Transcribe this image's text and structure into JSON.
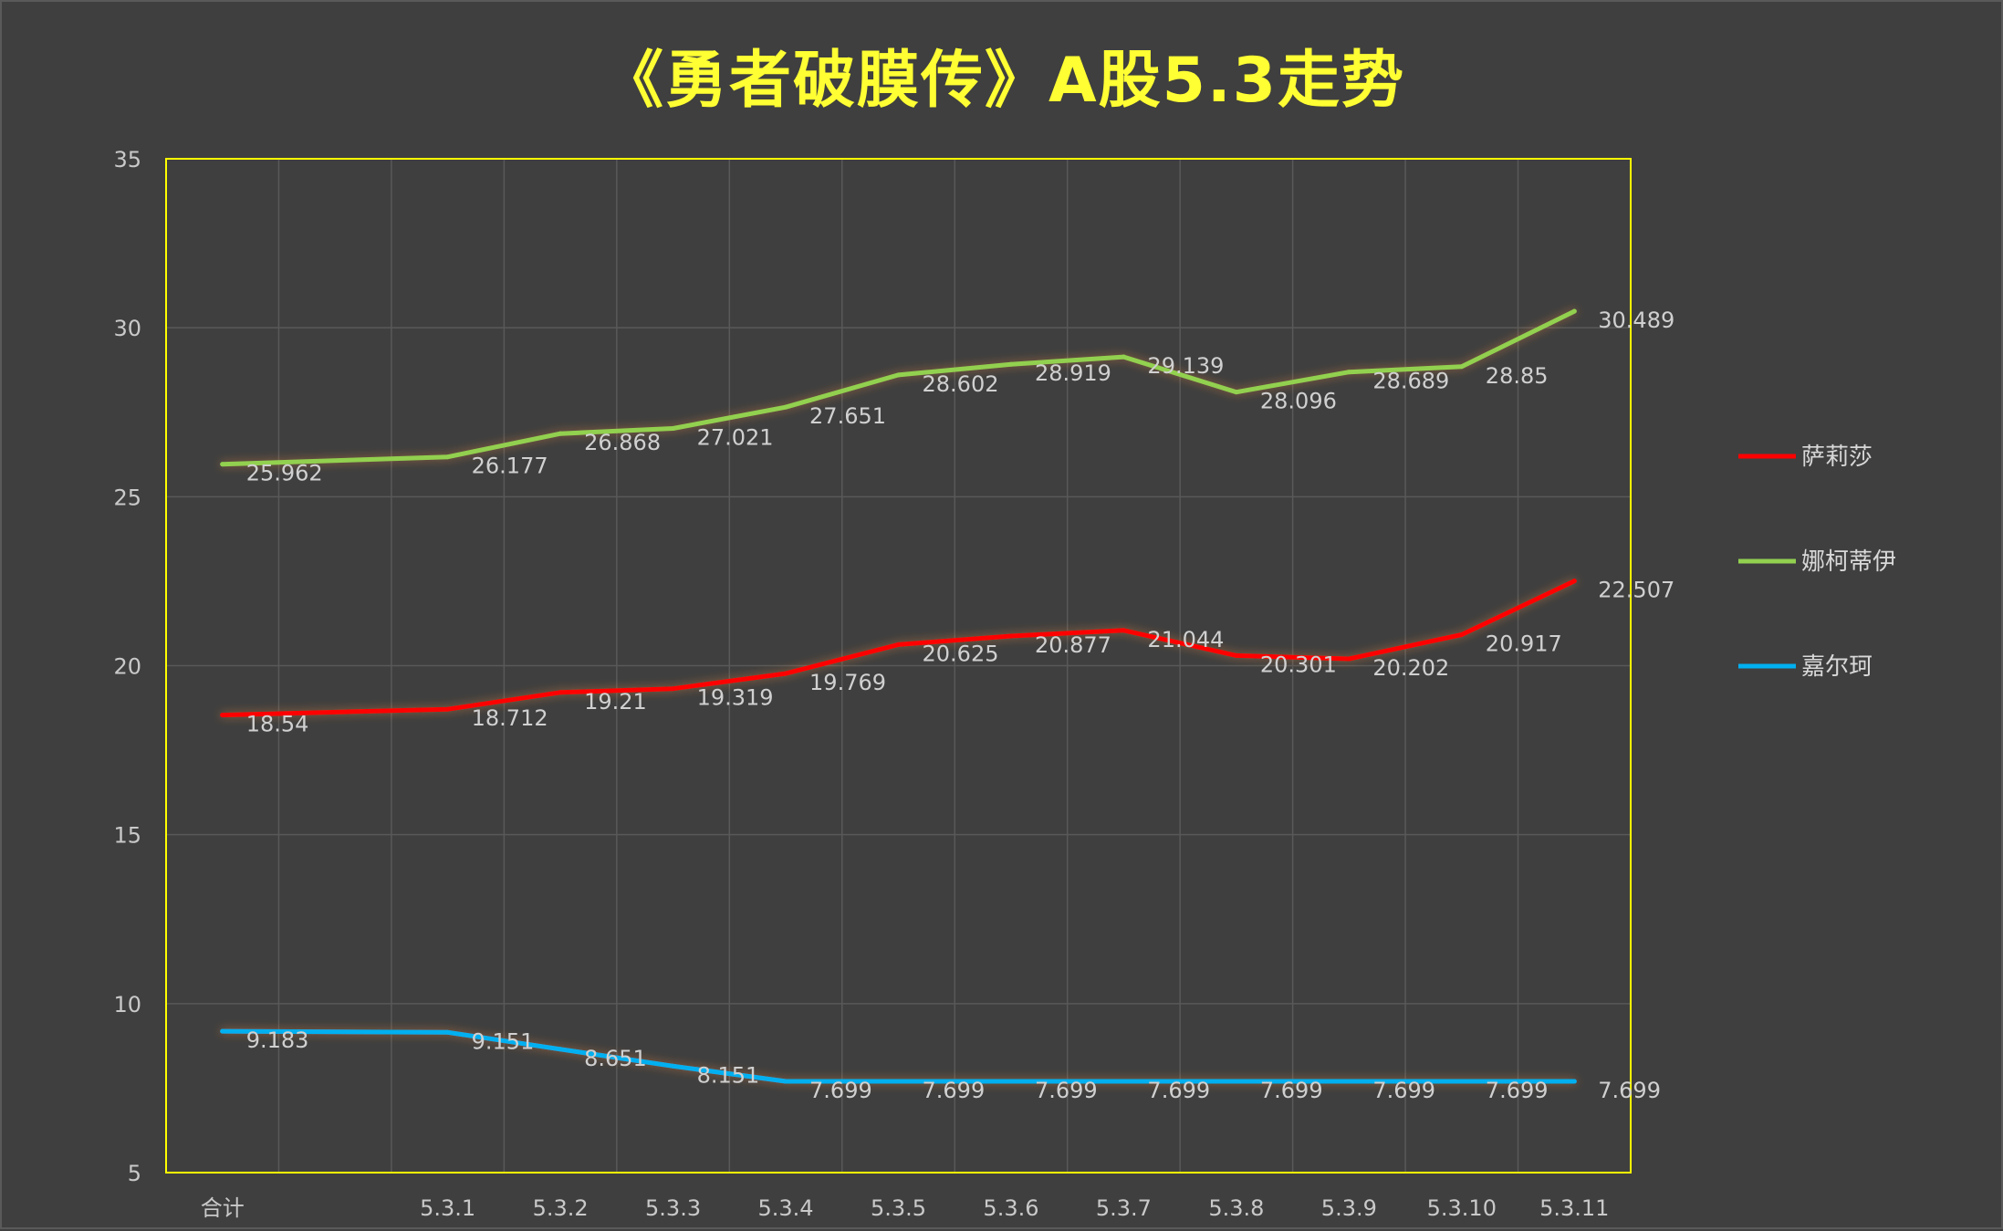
{
  "chart_data": {
    "type": "line",
    "title": "《勇者破膜传》A股5.3走势",
    "categories": [
      "合计",
      "",
      "5.3.1",
      "5.3.2",
      "5.3.3",
      "5.3.4",
      "5.3.5",
      "5.3.6",
      "5.3.7",
      "5.3.8",
      "5.3.9",
      "5.3.10",
      "5.3.11"
    ],
    "series": [
      {
        "name": "萨莉莎",
        "color": "#ff0000",
        "values": [
          18.54,
          null,
          18.712,
          19.21,
          19.319,
          19.769,
          20.625,
          20.877,
          21.044,
          20.301,
          20.202,
          20.917,
          22.507
        ]
      },
      {
        "name": "娜柯蒂伊",
        "color": "#92d050",
        "values": [
          25.962,
          null,
          26.177,
          26.868,
          27.021,
          27.651,
          28.602,
          28.919,
          29.139,
          28.096,
          28.689,
          28.85,
          30.489
        ]
      },
      {
        "name": "嘉尔珂",
        "color": "#00b0f0",
        "values": [
          9.183,
          null,
          9.151,
          8.651,
          8.151,
          7.699,
          7.699,
          7.699,
          7.699,
          7.699,
          7.699,
          7.699,
          7.699
        ]
      }
    ],
    "ylim": [
      5,
      35
    ],
    "yticks": [
      5,
      10,
      15,
      20,
      25,
      30,
      35
    ],
    "xlabel": "",
    "ylabel": "",
    "grid": true,
    "legend": "right",
    "colors": {
      "background": "#3f3f3f",
      "plot_border": "#ffff00",
      "grid": "#595959",
      "title": "#ffff33"
    }
  }
}
